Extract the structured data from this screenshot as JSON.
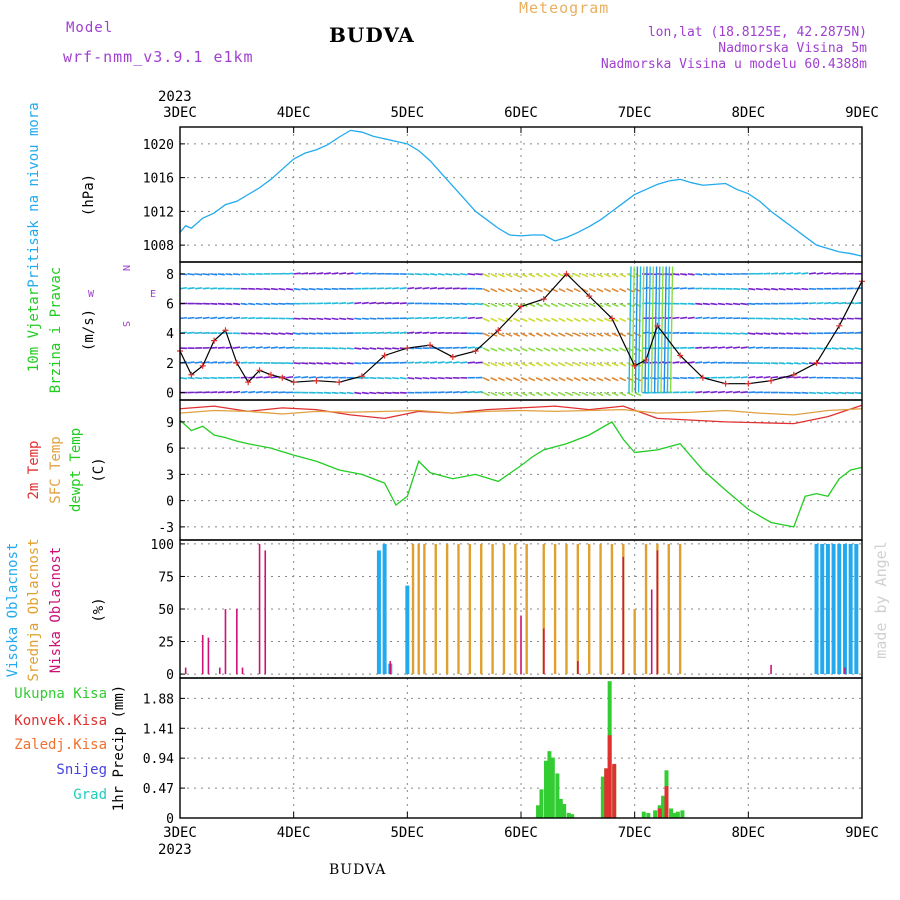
{
  "header": {
    "model_label": "Model",
    "model_name": "wrf-nmm_v3.9.1 e1km",
    "title": "BUDVA",
    "meteogram": "Meteogram",
    "lonlat": "lon,lat (18.8125E, 42.2875N)",
    "altitude": "Nadmorska Visina 5m",
    "model_altitude": "Nadmorska Visina u modelu 60.4388m"
  },
  "footer": {
    "station": "BUDVA"
  },
  "watermark": "made by Angel",
  "colors": {
    "pressure": "#22aaee",
    "temp2m": "#e03030",
    "sfc": "#e0a040",
    "dewpt": "#22cc22",
    "high_cloud": "#22aaee",
    "mid_cloud": "#e0a030",
    "low_cloud": "#cc1177",
    "precip_total": "#33cc33",
    "precip_conv": "#e03030",
    "precip_frozen": "#f07030",
    "snow": "#4444dd",
    "graupel": "#22ccbb"
  },
  "chart_data": [
    {
      "type": "line",
      "panel": "pressure",
      "ylabel_main": "Pritisak na nivou mora",
      "unit": "(hPa)",
      "x_ticks_top_year": "2023",
      "x_ticks": [
        "3DEC",
        "4DEC",
        "5DEC",
        "6DEC",
        "7DEC",
        "8DEC",
        "9DEC"
      ],
      "ylim": [
        1006,
        1022
      ],
      "yticks": [
        1008,
        1012,
        1016,
        1020
      ],
      "grid": true,
      "x": [
        0,
        0.05,
        0.1,
        0.2,
        0.3,
        0.4,
        0.5,
        0.6,
        0.7,
        0.8,
        0.9,
        1.0,
        1.1,
        1.2,
        1.3,
        1.4,
        1.5,
        1.6,
        1.7,
        1.8,
        1.9,
        2.0,
        2.1,
        2.2,
        2.3,
        2.4,
        2.5,
        2.6,
        2.7,
        2.8,
        2.9,
        3.0,
        3.1,
        3.2,
        3.3,
        3.4,
        3.5,
        3.6,
        3.7,
        3.8,
        3.9,
        4.0,
        4.1,
        4.2,
        4.3,
        4.4,
        4.5,
        4.6,
        4.7,
        4.8,
        4.9,
        5.0,
        5.1,
        5.2,
        5.3,
        5.4,
        5.5,
        5.6,
        5.7,
        5.8,
        5.9,
        6.0
      ],
      "values": [
        1009.5,
        1010.3,
        1010.0,
        1011.2,
        1011.8,
        1012.8,
        1013.2,
        1014.0,
        1014.8,
        1015.8,
        1017.0,
        1018.2,
        1018.9,
        1019.3,
        1019.9,
        1020.8,
        1021.6,
        1021.4,
        1020.9,
        1020.6,
        1020.3,
        1020.0,
        1019.2,
        1018.0,
        1016.5,
        1015.0,
        1013.5,
        1012.0,
        1011.0,
        1010.0,
        1009.2,
        1009.1,
        1009.2,
        1009.2,
        1008.5,
        1008.9,
        1009.5,
        1010.2,
        1011.0,
        1012.0,
        1013.0,
        1014.0,
        1014.6,
        1015.2,
        1015.6,
        1015.8,
        1015.4,
        1015.1,
        1015.2,
        1015.3,
        1014.6,
        1014.1,
        1013.2,
        1012.0,
        1011.0,
        1010.0,
        1009.0,
        1008.0,
        1007.6,
        1007.2,
        1007.0,
        1006.7
      ]
    },
    {
      "type": "line",
      "panel": "wind",
      "ylabel_main": "10m Vjetar",
      "ylabel_sub": "Brzina i Pravac",
      "unit": "(m/s)",
      "compass_n": "N",
      "compass_w": "W",
      "compass_e": "E",
      "compass_s": "S",
      "ylim": [
        -0.5,
        8.8
      ],
      "yticks": [
        0,
        2,
        4,
        6,
        8
      ],
      "grid": true,
      "series": [
        {
          "name": "speed",
          "x": [
            0,
            0.1,
            0.2,
            0.3,
            0.4,
            0.5,
            0.6,
            0.7,
            0.8,
            0.9,
            1.0,
            1.2,
            1.4,
            1.6,
            1.8,
            2.0,
            2.2,
            2.4,
            2.6,
            2.8,
            3.0,
            3.2,
            3.4,
            3.6,
            3.8,
            4.0,
            4.1,
            4.2,
            4.4,
            4.6,
            4.8,
            5.0,
            5.2,
            5.4,
            5.6,
            5.8,
            6.0
          ],
          "values": [
            2.8,
            1.2,
            1.8,
            3.5,
            4.2,
            2.0,
            0.7,
            1.5,
            1.2,
            1.0,
            0.7,
            0.8,
            0.7,
            1.1,
            2.5,
            3.0,
            3.2,
            2.4,
            2.8,
            4.2,
            5.8,
            6.3,
            8.0,
            6.5,
            5.0,
            1.8,
            2.2,
            4.5,
            2.5,
            1.0,
            0.6,
            0.6,
            0.8,
            1.2,
            2.0,
            4.5,
            7.5
          ]
        }
      ]
    },
    {
      "type": "line",
      "panel": "temperature",
      "ylabel_main": "2m Temp",
      "ylabel_sub": "SFC Temp",
      "ylabel_sub2": "dewpt Temp",
      "unit": "(C)",
      "ylim": [
        -4.5,
        11.5
      ],
      "yticks": [
        -3,
        0,
        3,
        6,
        9
      ],
      "grid": true,
      "series": [
        {
          "name": "2m Temp",
          "x": [
            0,
            0.3,
            0.6,
            0.9,
            1.2,
            1.5,
            1.8,
            2.1,
            2.4,
            2.7,
            3.0,
            3.3,
            3.6,
            3.9,
            4.2,
            4.5,
            4.8,
            5.1,
            5.4,
            5.7,
            6.0
          ],
          "values": [
            10.5,
            10.8,
            10.2,
            10.6,
            10.4,
            9.8,
            9.4,
            10.2,
            10.0,
            10.4,
            10.6,
            10.8,
            10.4,
            10.8,
            9.4,
            9.2,
            9.0,
            8.9,
            8.8,
            9.6,
            10.9
          ]
        },
        {
          "name": "SFC Temp",
          "x": [
            0,
            0.3,
            0.6,
            0.9,
            1.2,
            1.5,
            1.8,
            2.1,
            2.4,
            2.7,
            3.0,
            3.3,
            3.6,
            3.9,
            4.2,
            4.5,
            4.8,
            5.1,
            5.4,
            5.7,
            6.0
          ],
          "values": [
            10.0,
            10.3,
            10.2,
            9.9,
            10.2,
            10.1,
            10.2,
            10.3,
            10.0,
            10.2,
            10.3,
            10.2,
            10.3,
            10.4,
            10.0,
            10.1,
            10.3,
            10.0,
            9.8,
            10.3,
            10.5
          ]
        },
        {
          "name": "dewpt Temp",
          "x": [
            0,
            0.1,
            0.2,
            0.3,
            0.4,
            0.5,
            0.6,
            0.8,
            1.0,
            1.2,
            1.4,
            1.6,
            1.8,
            1.9,
            2.0,
            2.1,
            2.2,
            2.4,
            2.6,
            2.8,
            3.0,
            3.1,
            3.2,
            3.4,
            3.6,
            3.8,
            3.9,
            4.0,
            4.2,
            4.4,
            4.6,
            4.8,
            5.0,
            5.2,
            5.4,
            5.5,
            5.6,
            5.7,
            5.8,
            5.9,
            6.0
          ],
          "values": [
            9.2,
            8.0,
            8.5,
            7.5,
            7.2,
            6.8,
            6.5,
            6.0,
            5.2,
            4.5,
            3.5,
            3.0,
            2.0,
            -0.5,
            0.5,
            4.5,
            3.2,
            2.5,
            3.0,
            2.2,
            4.0,
            5.0,
            5.8,
            6.5,
            7.5,
            9.0,
            7.0,
            5.5,
            5.8,
            6.5,
            3.5,
            1.2,
            -1.0,
            -2.5,
            -3.0,
            0.5,
            0.8,
            0.5,
            2.5,
            3.5,
            3.8
          ]
        }
      ]
    },
    {
      "type": "bar",
      "panel": "clouds",
      "ylabel_main": "Visoka Oblacnost",
      "ylabel_sub": "Srednja Oblacnost",
      "ylabel_sub2": "Niska Oblacnost",
      "unit": "(%)",
      "ylim": [
        -3,
        103
      ],
      "yticks": [
        0,
        25,
        50,
        75,
        100
      ],
      "grid": true,
      "series": [
        {
          "name": "Visoka Oblacnost",
          "x": [
            1.75,
            1.8,
            1.85,
            2.0,
            5.6,
            5.65,
            5.7,
            5.75,
            5.8,
            5.85,
            5.9,
            5.95
          ],
          "values": [
            95,
            100,
            8,
            68,
            100,
            100,
            100,
            100,
            100,
            100,
            100,
            100
          ]
        },
        {
          "name": "Srednja Oblacnost",
          "x": [
            2.05,
            2.1,
            2.15,
            2.25,
            2.35,
            2.45,
            2.55,
            2.65,
            2.75,
            2.85,
            2.95,
            3.05,
            3.2,
            3.3,
            3.4,
            3.5,
            3.6,
            3.7,
            3.8,
            3.9,
            4.0,
            4.1,
            4.2,
            4.3,
            4.4
          ],
          "values": [
            100,
            100,
            100,
            100,
            100,
            100,
            100,
            100,
            100,
            100,
            100,
            100,
            100,
            100,
            100,
            100,
            100,
            100,
            100,
            100,
            50,
            100,
            100,
            100,
            100
          ]
        },
        {
          "name": "Niska Oblacnost",
          "x": [
            0.05,
            0.2,
            0.25,
            0.35,
            0.4,
            0.5,
            0.55,
            0.7,
            0.75,
            1.85,
            3.0,
            3.2,
            3.5,
            3.9,
            4.15,
            4.2,
            5.2,
            5.85
          ],
          "values": [
            5,
            30,
            28,
            5,
            50,
            50,
            5,
            100,
            95,
            10,
            45,
            35,
            10,
            90,
            65,
            95,
            7,
            5
          ]
        }
      ]
    },
    {
      "type": "bar",
      "panel": "precip",
      "ylabel_main": "1hr Precip",
      "unit": "(mm)",
      "legend": [
        "Ukupna Kisa",
        "Konvek.Kisa",
        "Zaledj.Kisa",
        "Snijeg",
        "Grad"
      ],
      "x_ticks_bottom_year": "2023",
      "ylim": [
        0,
        2.2
      ],
      "yticks": [
        0,
        0.47,
        0.94,
        1.41,
        1.88
      ],
      "ytick_labels": [
        "0",
        "0.47",
        "0.94",
        "1.41",
        "1.88"
      ],
      "grid": true,
      "series": [
        {
          "name": "Ukupna Kisa",
          "x": [
            3.15,
            3.18,
            3.22,
            3.25,
            3.28,
            3.32,
            3.35,
            3.38,
            3.42,
            3.45,
            3.72,
            3.75,
            3.78,
            3.82,
            4.08,
            4.12,
            4.18,
            4.22,
            4.25,
            4.28,
            4.32,
            4.35,
            4.38,
            4.42
          ],
          "values": [
            0.2,
            0.45,
            0.9,
            1.05,
            0.95,
            0.7,
            0.3,
            0.22,
            0.08,
            0.06,
            0.65,
            0.78,
            2.15,
            0.82,
            0.1,
            0.08,
            0.12,
            0.2,
            0.35,
            0.75,
            0.15,
            0.08,
            0.1,
            0.12
          ]
        },
        {
          "name": "Konvek.Kisa",
          "x": [
            3.75,
            3.78,
            3.82,
            4.22,
            4.28
          ],
          "values": [
            0.78,
            1.3,
            0.85,
            0.15,
            0.5
          ]
        }
      ]
    }
  ]
}
